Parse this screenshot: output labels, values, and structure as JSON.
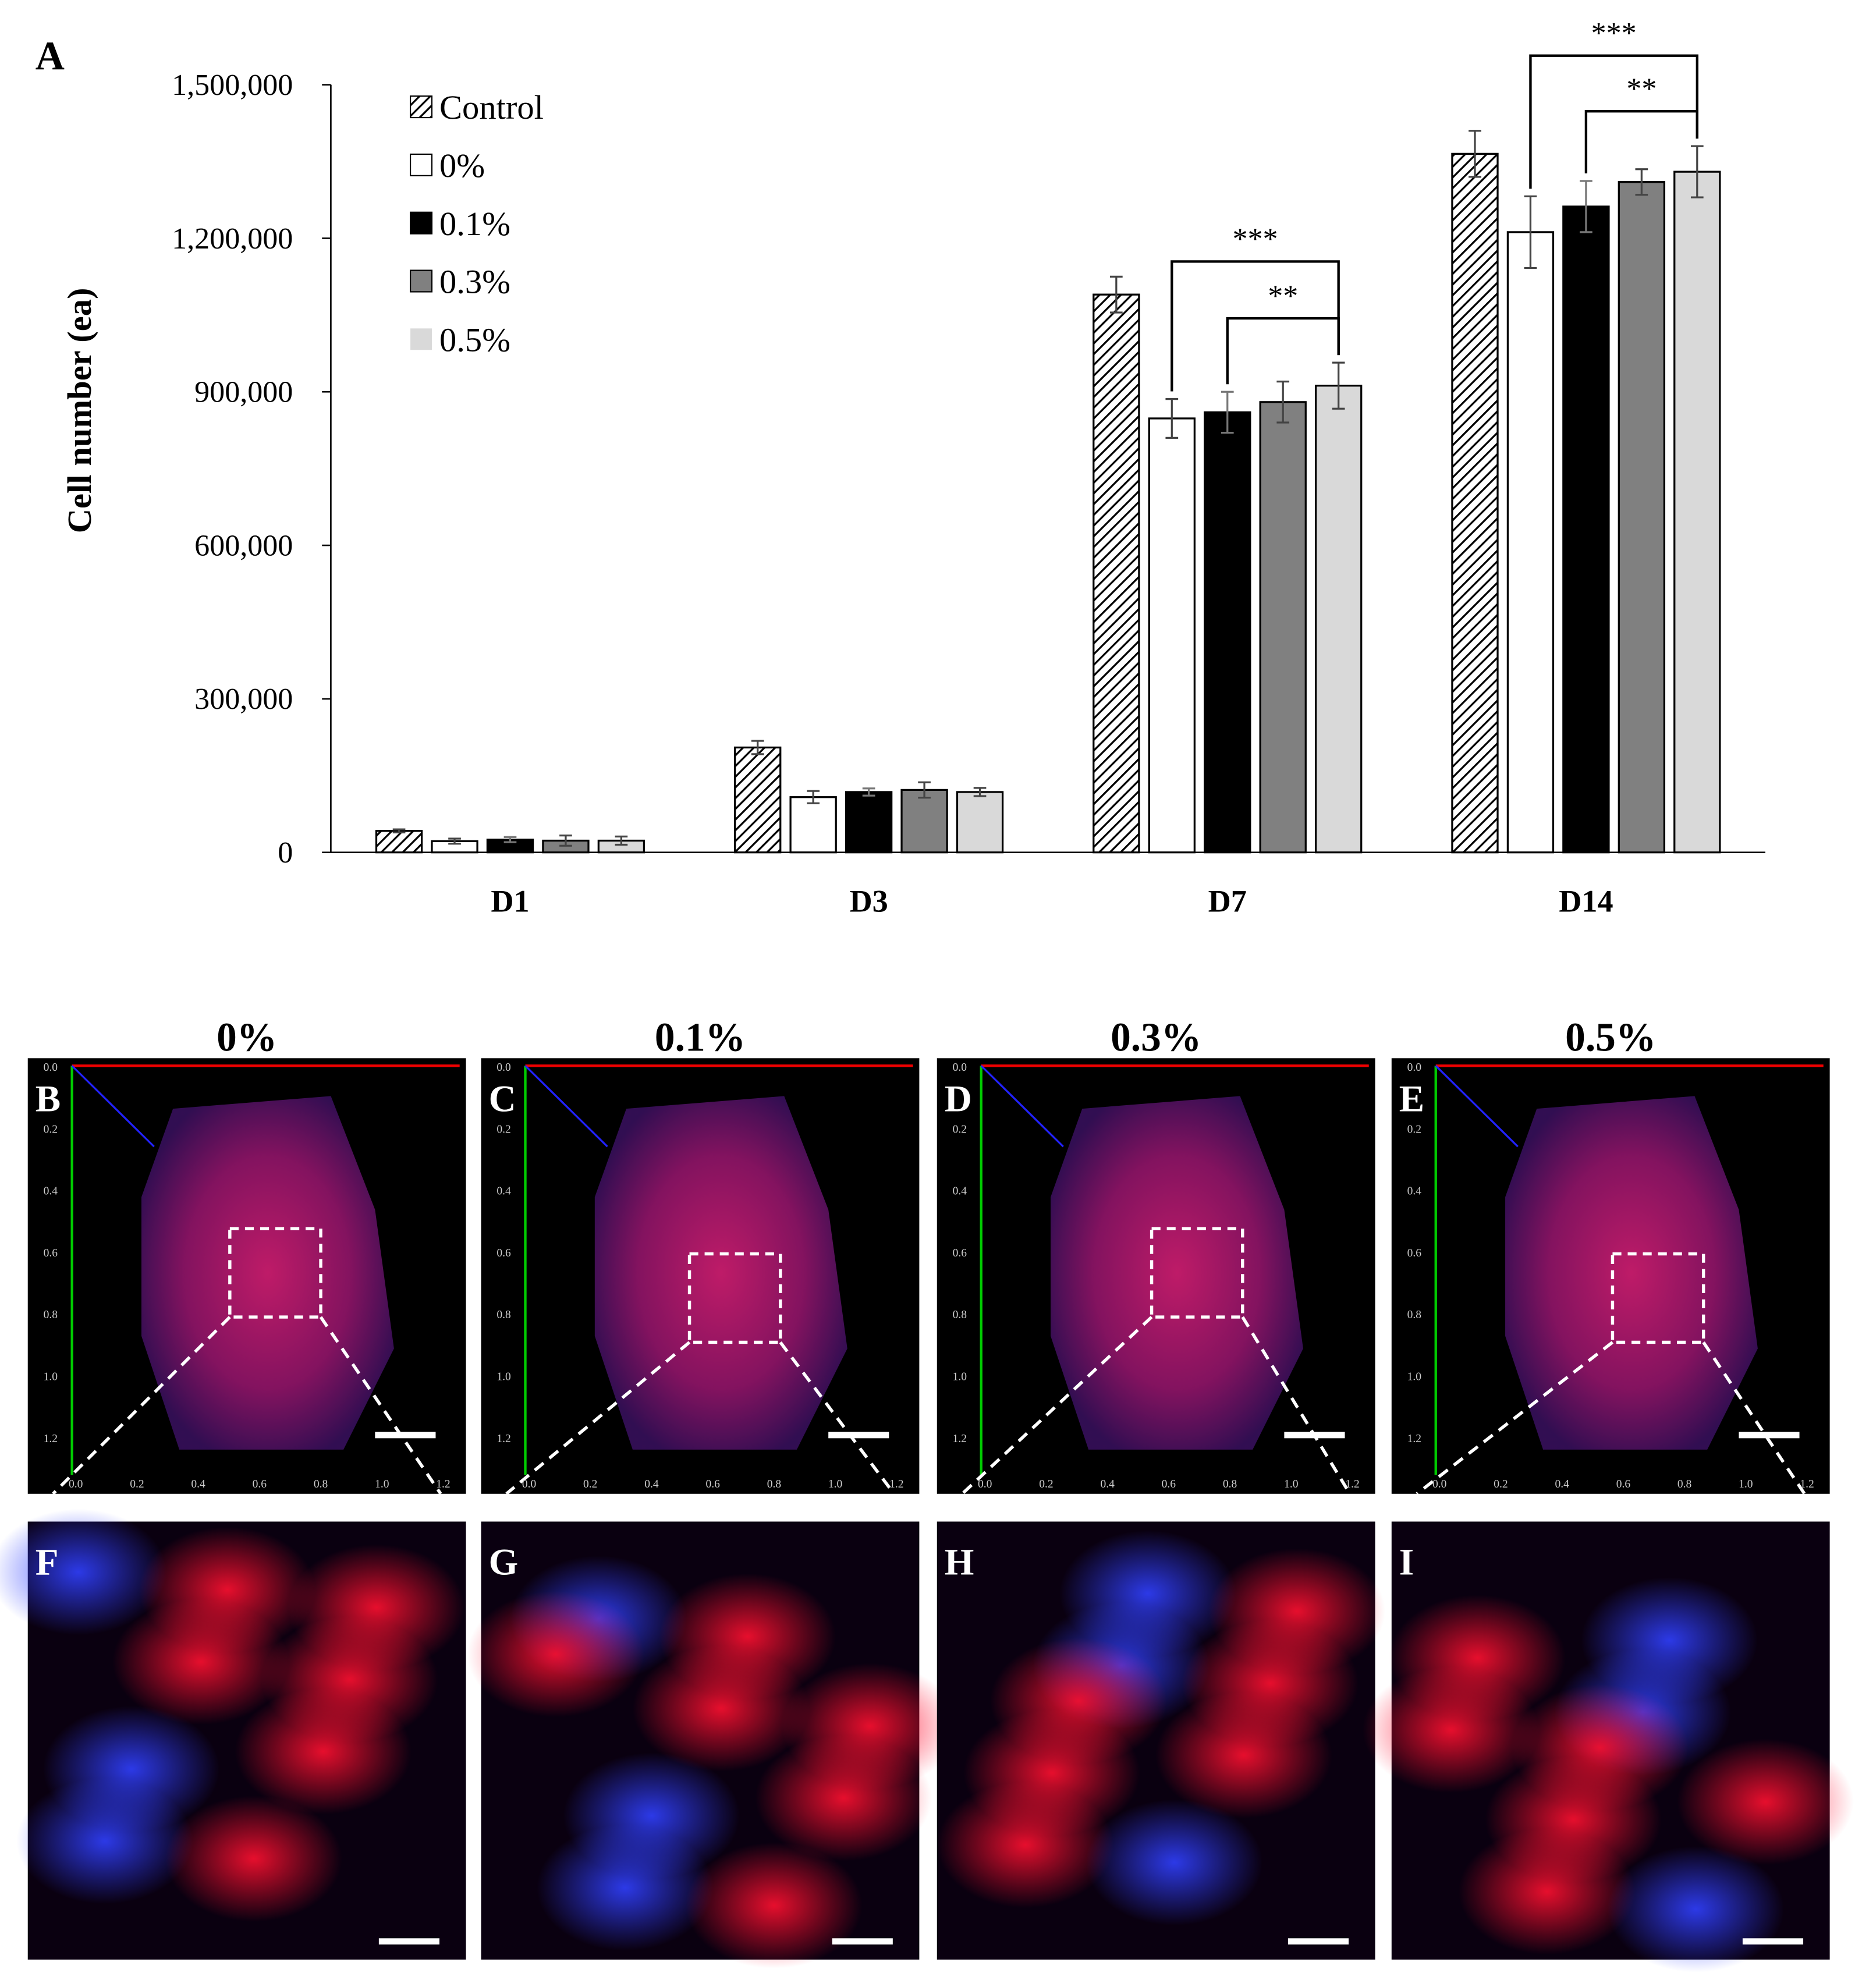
{
  "chart_data": {
    "type": "bar",
    "panel_label": "A",
    "y_label": "Cell number (ea)",
    "categories": [
      "D1",
      "D3",
      "D7",
      "D14"
    ],
    "series": [
      {
        "name": "Control",
        "color": "#ffffff",
        "pattern": "hatch",
        "values": [
          42000,
          205000,
          1090000,
          1365000
        ],
        "errors": [
          3000,
          13000,
          35000,
          45000
        ]
      },
      {
        "name": "0%",
        "color": "#ffffff",
        "values": [
          22000,
          108000,
          848000,
          1212000
        ],
        "errors": [
          5000,
          12000,
          38000,
          70000
        ]
      },
      {
        "name": "0.1%",
        "color": "#000000",
        "values": [
          25000,
          118000,
          860000,
          1262000
        ],
        "errors": [
          5000,
          7000,
          40000,
          50000
        ]
      },
      {
        "name": "0.3%",
        "color": "#808080",
        "values": [
          23000,
          122000,
          880000,
          1310000
        ],
        "errors": [
          10000,
          15000,
          40000,
          25000
        ]
      },
      {
        "name": "0.5%",
        "color": "#d9d9d9",
        "values": [
          23000,
          118000,
          912000,
          1330000
        ],
        "errors": [
          8000,
          8000,
          45000,
          50000
        ]
      }
    ],
    "ylim": [
      0,
      1500000
    ],
    "yticks": [
      0,
      {
        "value": 300000,
        "label": "300,000"
      },
      {
        "value": 600000,
        "label": "600,000"
      },
      {
        "value": 900000,
        "label": "900,000"
      },
      {
        "value": 1200000,
        "label": "1,200,000"
      },
      {
        "value": 1500000,
        "label": "1,500,000"
      }
    ],
    "annotations": [
      {
        "label": "***"
      },
      {
        "label": "**"
      },
      {
        "label": "***"
      },
      {
        "label": "**"
      }
    ]
  },
  "images": {
    "titles": [
      "0%",
      "0.1%",
      "0.3%",
      "0.5%"
    ],
    "top_labels": [
      "B",
      "C",
      "D",
      "E"
    ],
    "bottom_labels": [
      "F",
      "G",
      "H",
      "I"
    ],
    "volume_ticks": [
      "0.0",
      "0.2",
      "0.4",
      "0.6",
      "0.8",
      "1.0",
      "1.2"
    ]
  }
}
